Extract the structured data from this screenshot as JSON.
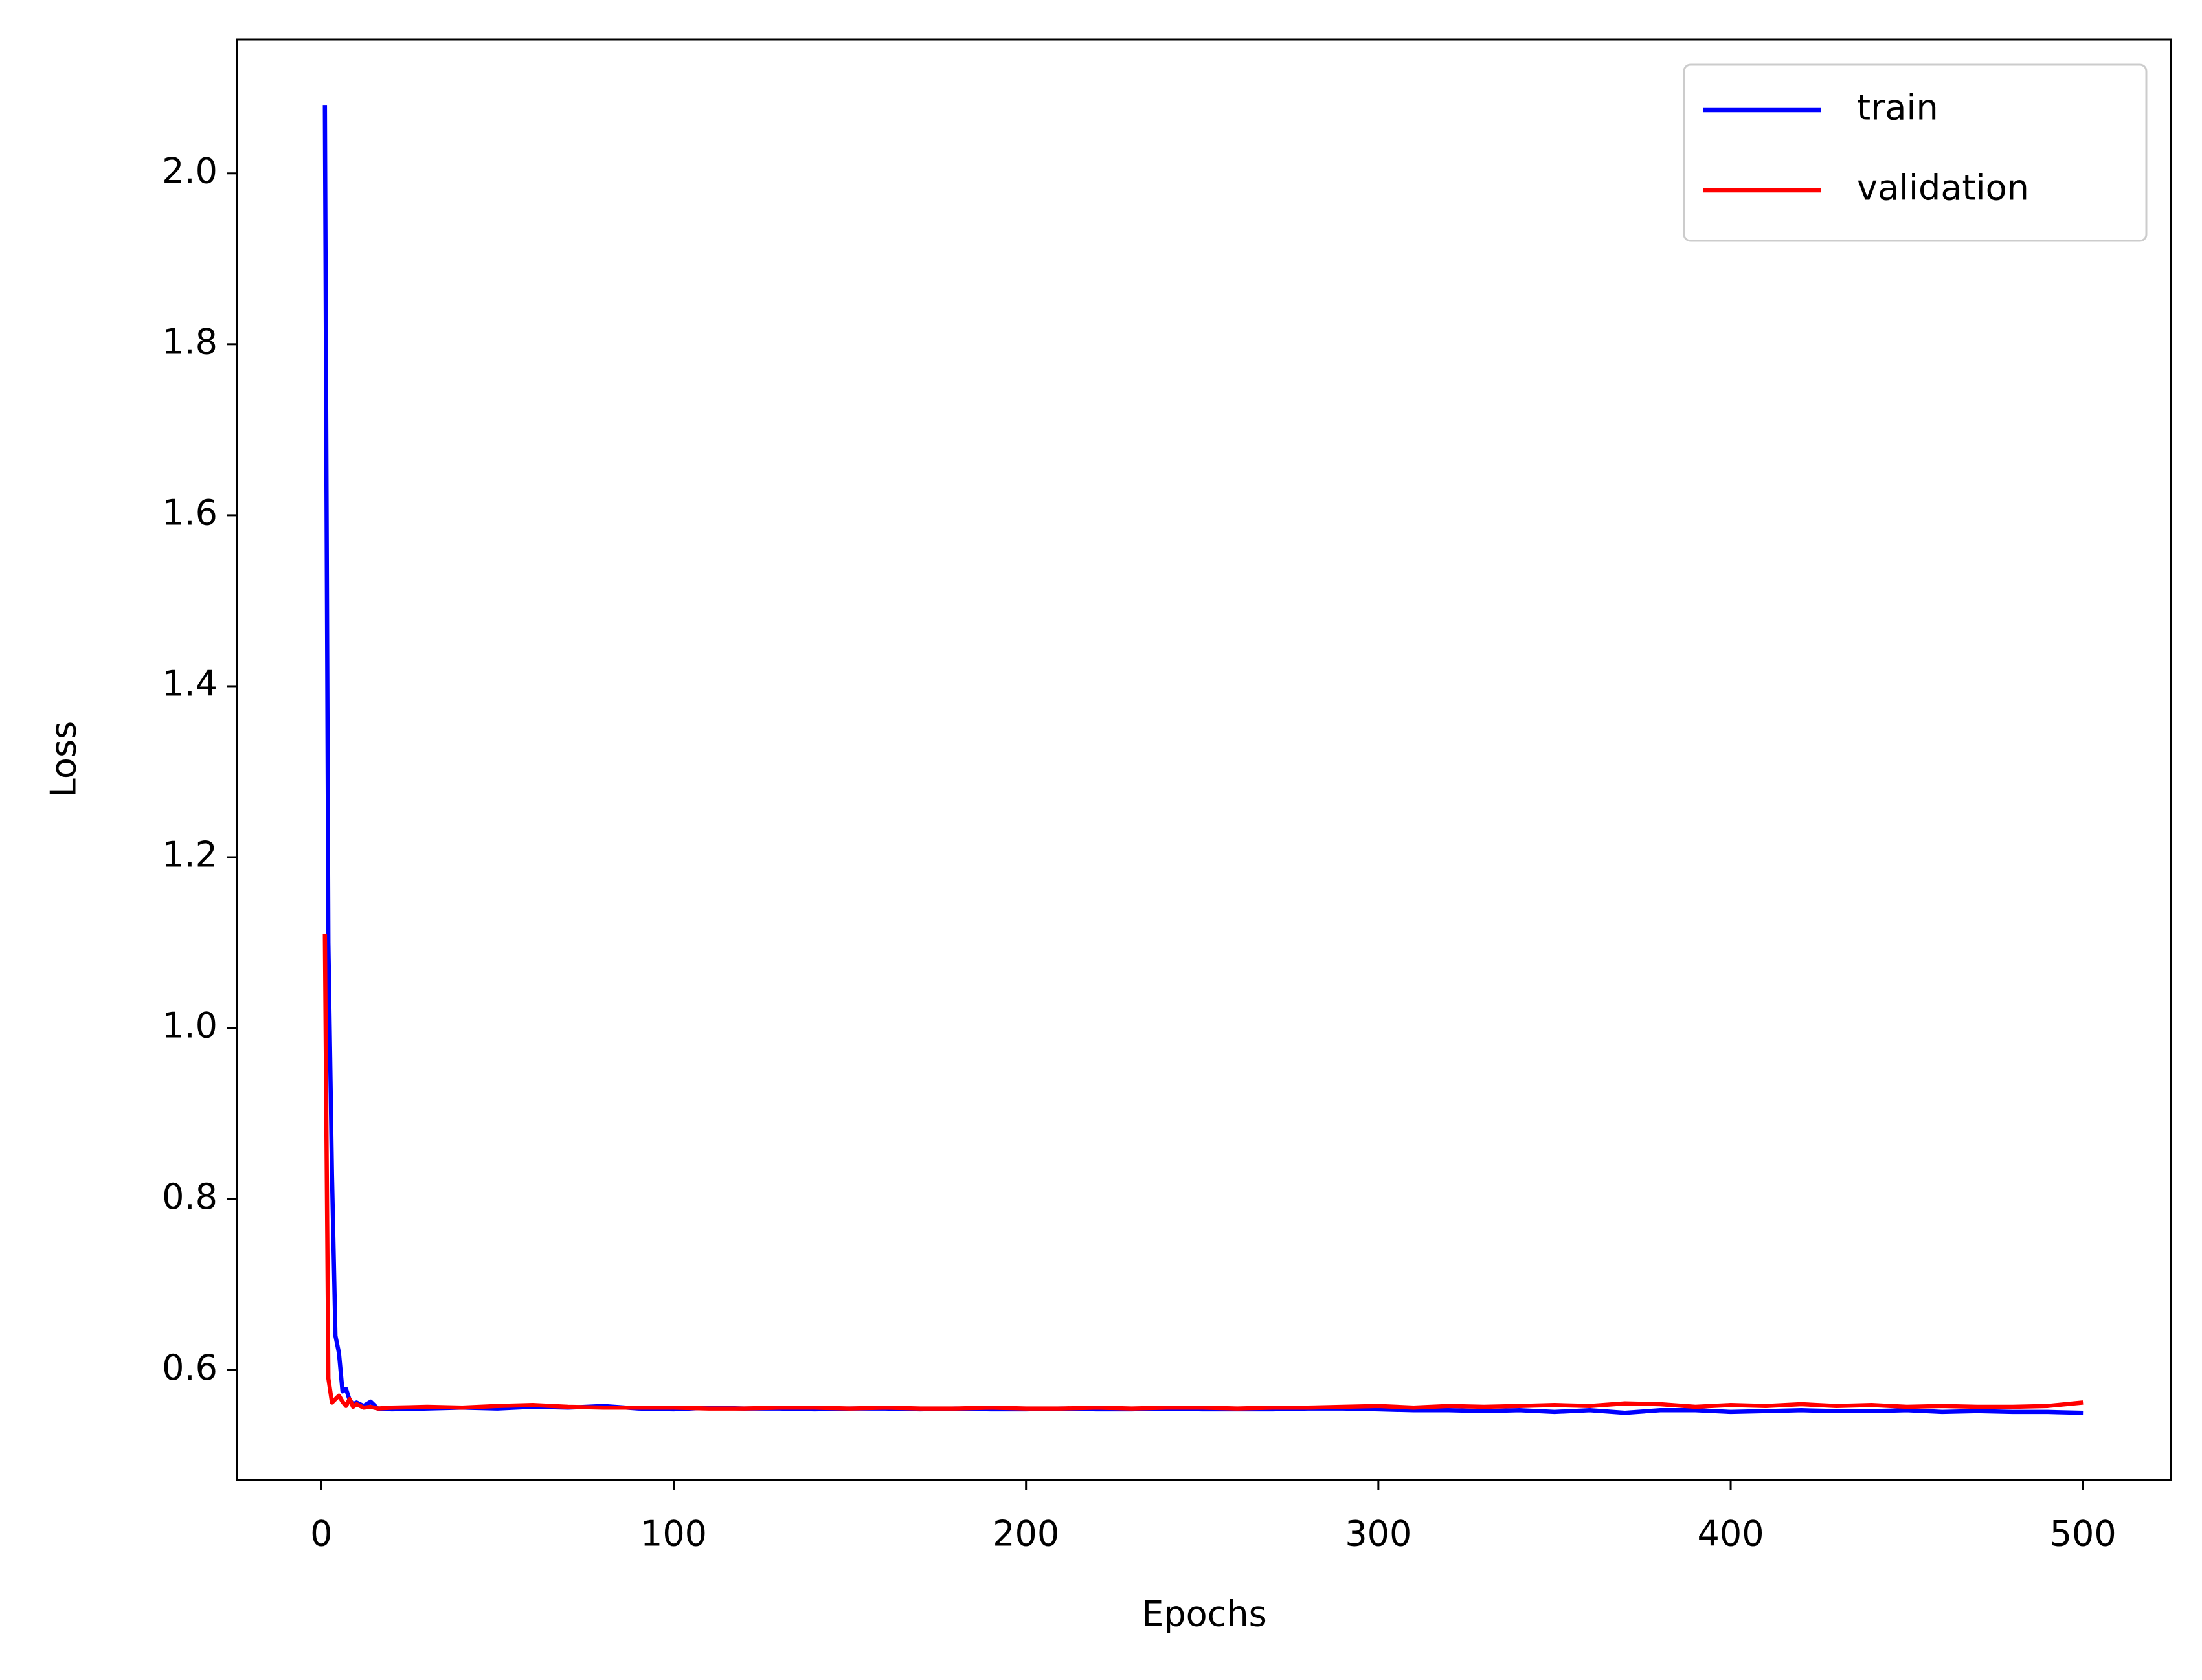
{
  "chart_data": {
    "type": "line",
    "x_label": "Epochs",
    "y_label": "Loss",
    "x": [
      1,
      2,
      3,
      4,
      5,
      6,
      7,
      8,
      9,
      10,
      12,
      14,
      16,
      20,
      30,
      40,
      50,
      60,
      70,
      80,
      90,
      100,
      110,
      120,
      130,
      140,
      150,
      160,
      170,
      180,
      190,
      200,
      210,
      220,
      230,
      240,
      250,
      260,
      270,
      280,
      290,
      300,
      310,
      320,
      330,
      340,
      350,
      360,
      370,
      380,
      390,
      400,
      410,
      420,
      430,
      440,
      450,
      460,
      470,
      480,
      490,
      500
    ],
    "series": [
      {
        "name": "train",
        "color": "#0000ff",
        "values": [
          2.08,
          1.1,
          0.83,
          0.64,
          0.62,
          0.575,
          0.578,
          0.565,
          0.56,
          0.562,
          0.558,
          0.563,
          0.555,
          0.554,
          0.555,
          0.556,
          0.555,
          0.557,
          0.556,
          0.558,
          0.555,
          0.554,
          0.556,
          0.555,
          0.555,
          0.554,
          0.555,
          0.555,
          0.554,
          0.555,
          0.554,
          0.554,
          0.555,
          0.554,
          0.554,
          0.555,
          0.554,
          0.554,
          0.554,
          0.555,
          0.555,
          0.554,
          0.553,
          0.553,
          0.552,
          0.553,
          0.551,
          0.553,
          0.55,
          0.553,
          0.553,
          0.551,
          0.552,
          0.553,
          0.552,
          0.552,
          0.553,
          0.551,
          0.552,
          0.551,
          0.551,
          0.55
        ]
      },
      {
        "name": "validation",
        "color": "#ff0000",
        "values": [
          1.11,
          0.59,
          0.562,
          0.566,
          0.57,
          0.563,
          0.558,
          0.566,
          0.557,
          0.56,
          0.556,
          0.557,
          0.555,
          0.556,
          0.557,
          0.556,
          0.558,
          0.559,
          0.557,
          0.556,
          0.556,
          0.556,
          0.555,
          0.555,
          0.556,
          0.556,
          0.555,
          0.556,
          0.555,
          0.555,
          0.556,
          0.555,
          0.555,
          0.556,
          0.555,
          0.556,
          0.556,
          0.555,
          0.556,
          0.556,
          0.557,
          0.558,
          0.556,
          0.558,
          0.557,
          0.558,
          0.559,
          0.558,
          0.561,
          0.56,
          0.557,
          0.559,
          0.558,
          0.56,
          0.558,
          0.559,
          0.557,
          0.558,
          0.557,
          0.557,
          0.558,
          0.562
        ]
      }
    ],
    "xlim": [
      -23.95,
      524.95
    ],
    "ylim": [
      0.4714,
      2.1566
    ],
    "xticks": [
      0,
      100,
      200,
      300,
      400,
      500
    ],
    "yticks": [
      0.6,
      0.8,
      {
        "value": 1,
        "label": "1.0"
      },
      1.2,
      1.4,
      1.6,
      1.8,
      {
        "value": 2,
        "label": "2.0"
      }
    ],
    "grid": false,
    "legend": "upper-right"
  }
}
